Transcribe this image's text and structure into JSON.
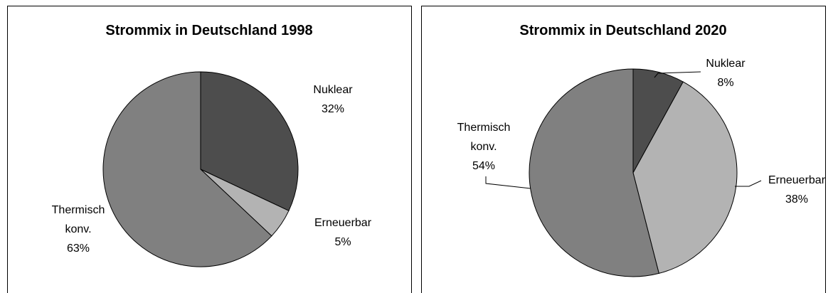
{
  "chart_data": [
    {
      "type": "pie",
      "title": "Strommix in Deutschland 1998",
      "categories": [
        "Nuklear",
        "Erneuerbar",
        "Thermisch konv."
      ],
      "values": [
        32,
        5,
        63
      ],
      "value_labels": [
        "32%",
        "5%",
        "63%"
      ],
      "colors": [
        "#4d4d4d",
        "#b3b3b3",
        "#808080"
      ]
    },
    {
      "type": "pie",
      "title": "Strommix in Deutschland 2020",
      "categories": [
        "Nuklear",
        "Erneuerbar",
        "Thermisch konv."
      ],
      "values": [
        8,
        38,
        54
      ],
      "value_labels": [
        "8%",
        "38%",
        "54%"
      ],
      "colors": [
        "#4d4d4d",
        "#b3b3b3",
        "#808080"
      ]
    }
  ]
}
